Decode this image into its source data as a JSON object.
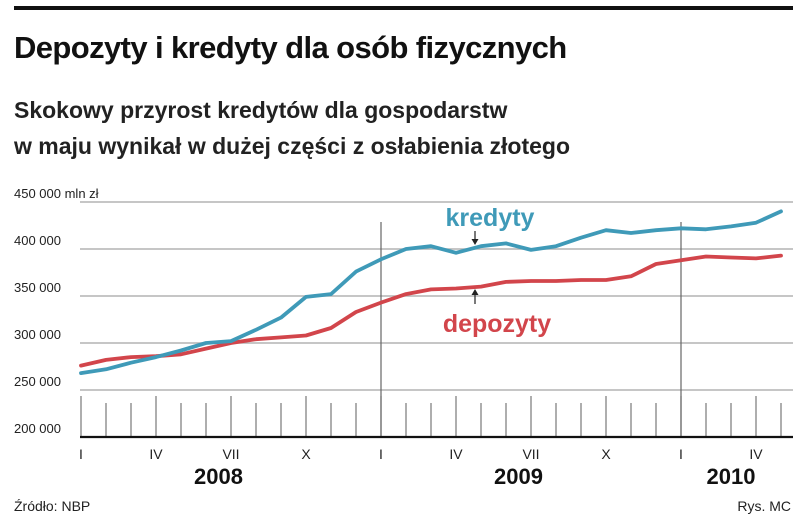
{
  "header": {
    "title": "Depozyty i kredyty dla osób fizycznych",
    "subtitle_line1": "Skokowy przyrost kredytów dla gospodarstw",
    "subtitle_line2": "w maju wynikał w dużej części z osłabienia złotego"
  },
  "footer": {
    "source": "Źródło: NBP",
    "credit": "Rys. MC"
  },
  "colors": {
    "kredyty": "#3f9ab8",
    "depozyty": "#d2454b",
    "grid": "#b3b3b3",
    "axis": "#111111"
  },
  "chart_data": {
    "type": "line",
    "title": "",
    "xlabel": "",
    "ylabel": "",
    "ylim": [
      200000,
      450000
    ],
    "grid": true,
    "yticks": [
      {
        "value": 450000,
        "label": "450 000 mln zł"
      },
      {
        "value": 400000,
        "label": "400 000"
      },
      {
        "value": 350000,
        "label": "350 000"
      },
      {
        "value": 300000,
        "label": "300 000"
      },
      {
        "value": 250000,
        "label": "250 000"
      },
      {
        "value": 200000,
        "label": "200 000"
      }
    ],
    "x": [
      "2008-01",
      "2008-02",
      "2008-03",
      "2008-04",
      "2008-05",
      "2008-06",
      "2008-07",
      "2008-08",
      "2008-09",
      "2008-10",
      "2008-11",
      "2008-12",
      "2009-01",
      "2009-02",
      "2009-03",
      "2009-04",
      "2009-05",
      "2009-06",
      "2009-07",
      "2009-08",
      "2009-09",
      "2009-10",
      "2009-11",
      "2009-12",
      "2010-01",
      "2010-02",
      "2010-03",
      "2010-04",
      "2010-05"
    ],
    "xtick_labels": [
      {
        "index": 0,
        "label": "I"
      },
      {
        "index": 3,
        "label": "IV"
      },
      {
        "index": 6,
        "label": "VII"
      },
      {
        "index": 9,
        "label": "X"
      },
      {
        "index": 12,
        "label": "I"
      },
      {
        "index": 15,
        "label": "IV"
      },
      {
        "index": 18,
        "label": "VII"
      },
      {
        "index": 21,
        "label": "X"
      },
      {
        "index": 24,
        "label": "I"
      },
      {
        "index": 27,
        "label": "IV"
      }
    ],
    "years": [
      {
        "label": "2008",
        "start_index": 0,
        "end_index": 11
      },
      {
        "label": "2009",
        "start_index": 12,
        "end_index": 23
      },
      {
        "label": "2010",
        "start_index": 24,
        "end_index": 28
      }
    ],
    "series": [
      {
        "name": "kredyty",
        "values": [
          268000,
          272000,
          279000,
          285000,
          292000,
          300000,
          302000,
          314000,
          327000,
          349000,
          352000,
          376000,
          389000,
          400000,
          403000,
          396000,
          403000,
          406000,
          399000,
          403000,
          412000,
          420000,
          417000,
          420000,
          422000,
          421000,
          424000,
          428000,
          440000
        ]
      },
      {
        "name": "depozyty",
        "values": [
          276000,
          282000,
          285000,
          286000,
          288000,
          294000,
          300000,
          304000,
          306000,
          308000,
          316000,
          333000,
          343000,
          352000,
          357000,
          358000,
          360000,
          365000,
          366000,
          366000,
          367000,
          367000,
          371000,
          384000,
          388000,
          392000,
          391000,
          390000,
          393000
        ]
      }
    ]
  }
}
